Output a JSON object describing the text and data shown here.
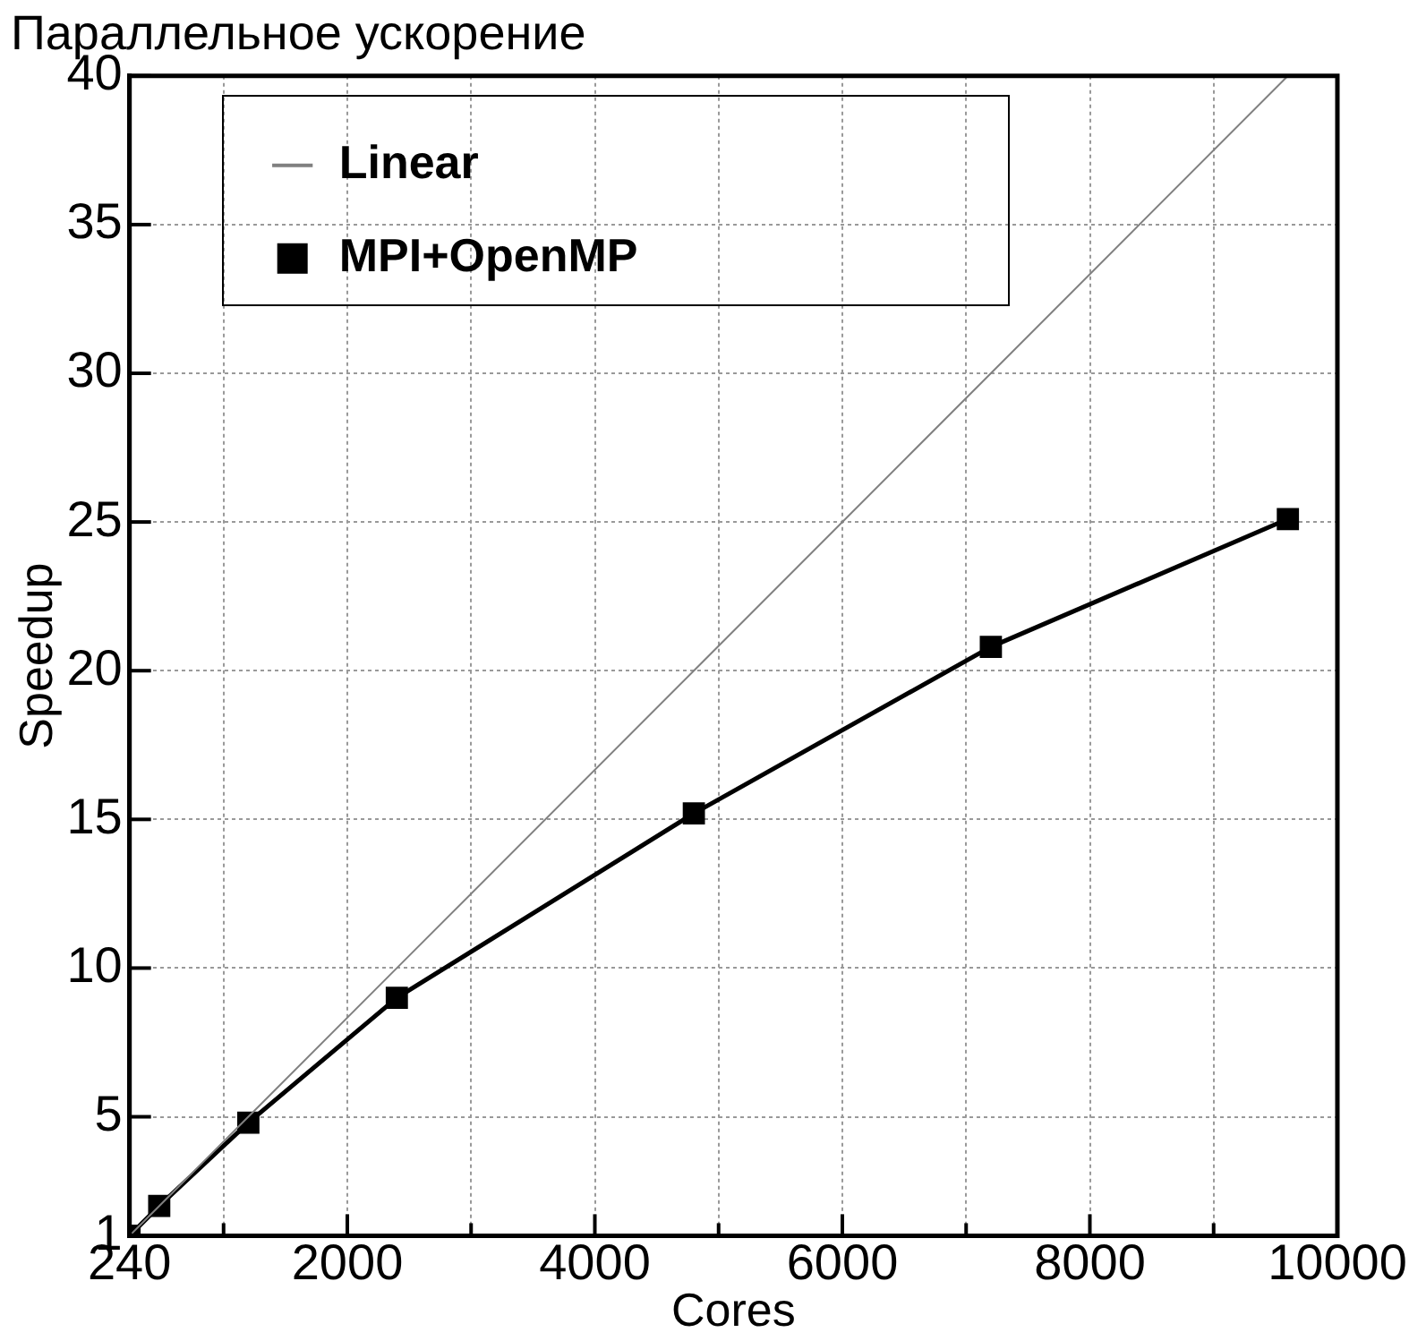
{
  "chart_data": {
    "type": "line",
    "title": "Параллельное ускорение",
    "xlabel": "Cores",
    "ylabel": "Speedup",
    "x": [
      240,
      480,
      1200,
      2400,
      4800,
      7200,
      9600
    ],
    "series": [
      {
        "name": "Linear",
        "color": "#808080",
        "values": [
          1,
          2,
          5,
          10,
          20,
          30,
          40
        ],
        "marker": "none"
      },
      {
        "name": "MPI+OpenMP",
        "color": "#000000",
        "values": [
          1,
          2,
          4.8,
          9,
          15.2,
          20.8,
          25.1
        ],
        "marker": "square"
      }
    ],
    "xlim": [
      240,
      10000
    ],
    "xticks": [
      240,
      {
        "value": 1000,
        "label": null
      },
      2000,
      {
        "value": 3000,
        "label": null
      },
      4000,
      {
        "value": 5000,
        "label": null
      },
      6000,
      {
        "value": 7000,
        "label": null
      },
      8000,
      {
        "value": 9000,
        "label": null
      },
      10000
    ],
    "ylim": [
      1,
      40
    ],
    "yticks": [
      1,
      5,
      10,
      15,
      20,
      25,
      30,
      35,
      40
    ],
    "grid": true,
    "legend": "top left",
    "line_style": "solid"
  }
}
